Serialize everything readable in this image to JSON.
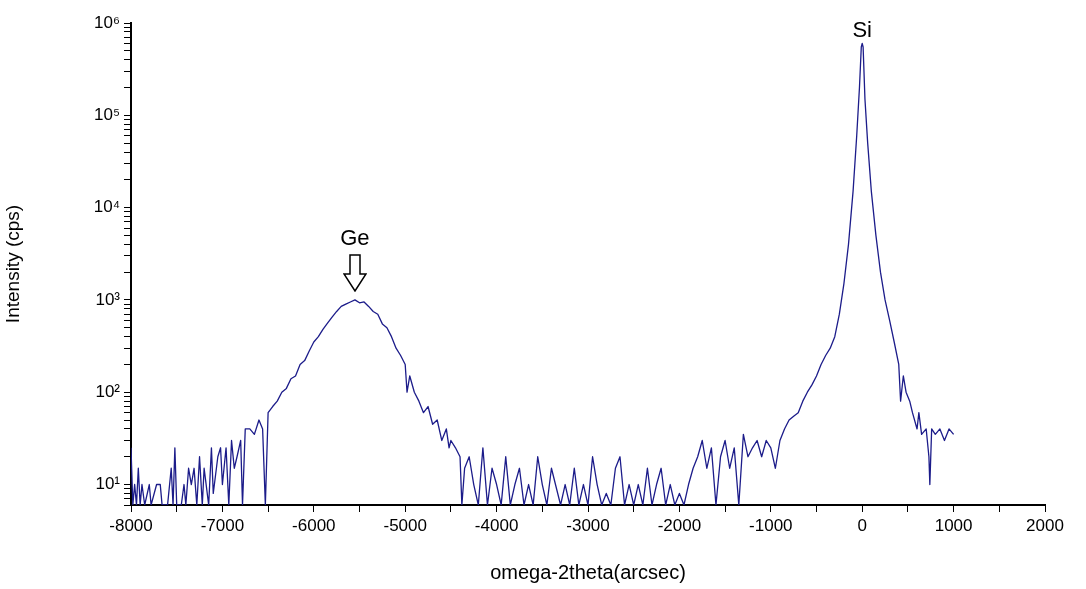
{
  "chart_data": {
    "type": "line",
    "xlabel": "omega-2theta(arcsec)",
    "ylabel": "Intensity (cps)",
    "log": "y",
    "grid": false,
    "legend": false,
    "marker": "none",
    "line_style": "solid",
    "xlim": [
      -8000,
      2000
    ],
    "xticks": [
      -8000,
      {
        "value": -7500,
        "label": null
      },
      -7000,
      {
        "value": -6500,
        "label": null
      },
      -6000,
      {
        "value": -5500,
        "label": null
      },
      -5000,
      {
        "value": -4500,
        "label": null
      },
      -4000,
      {
        "value": -3500,
        "label": null
      },
      -3000,
      {
        "value": -2500,
        "label": null
      },
      -2000,
      {
        "value": -1500,
        "label": null
      },
      -1000,
      {
        "value": -500,
        "label": null
      },
      0,
      {
        "value": 500,
        "label": null
      },
      1000,
      {
        "value": 1500,
        "label": null
      },
      2000
    ],
    "ylim": [
      6,
      1000000
    ],
    "yticks": [
      {
        "value": 6,
        "label": null
      },
      {
        "value": 7,
        "label": null
      },
      {
        "value": 8,
        "label": null
      },
      {
        "value": 9,
        "label": null
      },
      {
        "value": 10,
        "label": "10¹"
      },
      {
        "value": 20,
        "label": null
      },
      {
        "value": 30,
        "label": null
      },
      {
        "value": 40,
        "label": null
      },
      {
        "value": 50,
        "label": null
      },
      {
        "value": 60,
        "label": null
      },
      {
        "value": 70,
        "label": null
      },
      {
        "value": 80,
        "label": null
      },
      {
        "value": 90,
        "label": null
      },
      {
        "value": 100,
        "label": "10²"
      },
      {
        "value": 200,
        "label": null
      },
      {
        "value": 300,
        "label": null
      },
      {
        "value": 400,
        "label": null
      },
      {
        "value": 500,
        "label": null
      },
      {
        "value": 600,
        "label": null
      },
      {
        "value": 700,
        "label": null
      },
      {
        "value": 800,
        "label": null
      },
      {
        "value": 900,
        "label": null
      },
      {
        "value": 1000,
        "label": "10³"
      },
      {
        "value": 2000,
        "label": null
      },
      {
        "value": 3000,
        "label": null
      },
      {
        "value": 4000,
        "label": null
      },
      {
        "value": 5000,
        "label": null
      },
      {
        "value": 6000,
        "label": null
      },
      {
        "value": 7000,
        "label": null
      },
      {
        "value": 8000,
        "label": null
      },
      {
        "value": 9000,
        "label": null
      },
      {
        "value": 10000,
        "label": "10⁴"
      },
      {
        "value": 20000,
        "label": null
      },
      {
        "value": 30000,
        "label": null
      },
      {
        "value": 40000,
        "label": null
      },
      {
        "value": 50000,
        "label": null
      },
      {
        "value": 60000,
        "label": null
      },
      {
        "value": 70000,
        "label": null
      },
      {
        "value": 80000,
        "label": null
      },
      {
        "value": 90000,
        "label": null
      },
      {
        "value": 100000,
        "label": "10⁵"
      },
      {
        "value": 200000,
        "label": null
      },
      {
        "value": 300000,
        "label": null
      },
      {
        "value": 400000,
        "label": null
      },
      {
        "value": 500000,
        "label": null
      },
      {
        "value": 600000,
        "label": null
      },
      {
        "value": 700000,
        "label": null
      },
      {
        "value": 800000,
        "label": null
      },
      {
        "value": 900000,
        "label": null
      },
      {
        "value": 1000000,
        "label": "10⁶"
      }
    ],
    "annotations": [
      {
        "text": "Ge",
        "x": -5550,
        "y": 1000
      },
      {
        "text": "Si",
        "x": 0,
        "y": 600000
      }
    ],
    "series": [
      {
        "color": "#1c1c8a",
        "x": [
          -8000,
          -7980,
          -7960,
          -7940,
          -7920,
          -7900,
          -7880,
          -7850,
          -7800,
          -7780,
          -7720,
          -7680,
          -7660,
          -7600,
          -7560,
          -7540,
          -7520,
          -7500,
          -7450,
          -7420,
          -7400,
          -7370,
          -7340,
          -7310,
          -7280,
          -7250,
          -7220,
          -7200,
          -7150,
          -7120,
          -7100,
          -7050,
          -7020,
          -7000,
          -6960,
          -6930,
          -6900,
          -6870,
          -6840,
          -6800,
          -6780,
          -6750,
          -6700,
          -6650,
          -6600,
          -6560,
          -6530,
          -6500,
          -6450,
          -6400,
          -6350,
          -6300,
          -6250,
          -6200,
          -6150,
          -6100,
          -6050,
          -6000,
          -5950,
          -5900,
          -5850,
          -5800,
          -5750,
          -5700,
          -5650,
          -5600,
          -5550,
          -5500,
          -5450,
          -5400,
          -5350,
          -5300,
          -5250,
          -5200,
          -5150,
          -5100,
          -5050,
          -5000,
          -4980,
          -4950,
          -4900,
          -4850,
          -4800,
          -4750,
          -4700,
          -4650,
          -4600,
          -4550,
          -4520,
          -4500,
          -4450,
          -4400,
          -4380,
          -4350,
          -4300,
          -4250,
          -4200,
          -4150,
          -4100,
          -4050,
          -4000,
          -3950,
          -3900,
          -3850,
          -3800,
          -3750,
          -3700,
          -3650,
          -3600,
          -3550,
          -3500,
          -3450,
          -3400,
          -3300,
          -3250,
          -3200,
          -3150,
          -3100,
          -3050,
          -3000,
          -2950,
          -2900,
          -2850,
          -2800,
          -2750,
          -2700,
          -2650,
          -2600,
          -2550,
          -2500,
          -2450,
          -2400,
          -2350,
          -2300,
          -2250,
          -2200,
          -2150,
          -2100,
          -2050,
          -2000,
          -1950,
          -1900,
          -1850,
          -1800,
          -1750,
          -1700,
          -1650,
          -1600,
          -1550,
          -1500,
          -1450,
          -1400,
          -1350,
          -1300,
          -1250,
          -1200,
          -1150,
          -1100,
          -1050,
          -1000,
          -950,
          -900,
          -850,
          -800,
          -750,
          -700,
          -650,
          -600,
          -550,
          -500,
          -450,
          -400,
          -350,
          -300,
          -250,
          -200,
          -150,
          -100,
          -60,
          -30,
          -10,
          0,
          10,
          30,
          60,
          100,
          150,
          200,
          250,
          300,
          350,
          400,
          420,
          450,
          480,
          520,
          550,
          600,
          620,
          650,
          700,
          730,
          740,
          760,
          800,
          850,
          900,
          950,
          1000
        ],
        "values": [
          25,
          6,
          10,
          6,
          15,
          6,
          10,
          6,
          10,
          6,
          10,
          10,
          6,
          6,
          15,
          6,
          25,
          6,
          6,
          10,
          6,
          15,
          10,
          15,
          6,
          20,
          6,
          15,
          6,
          25,
          8,
          20,
          25,
          10,
          25,
          6,
          30,
          15,
          20,
          30,
          6,
          40,
          40,
          35,
          50,
          40,
          6,
          60,
          70,
          80,
          100,
          110,
          140,
          150,
          200,
          220,
          280,
          350,
          400,
          480,
          560,
          650,
          750,
          850,
          900,
          950,
          1000,
          930,
          950,
          850,
          750,
          700,
          550,
          500,
          400,
          300,
          250,
          200,
          100,
          150,
          100,
          80,
          60,
          70,
          45,
          50,
          30,
          40,
          25,
          30,
          25,
          20,
          6,
          15,
          20,
          10,
          6,
          25,
          6,
          15,
          10,
          6,
          20,
          6,
          10,
          15,
          6,
          10,
          6,
          20,
          10,
          6,
          15,
          6,
          10,
          6,
          15,
          6,
          10,
          6,
          20,
          10,
          6,
          8,
          6,
          15,
          20,
          6,
          10,
          6,
          10,
          6,
          15,
          6,
          10,
          15,
          6,
          10,
          6,
          8,
          6,
          10,
          15,
          20,
          30,
          15,
          25,
          6,
          20,
          30,
          15,
          25,
          6,
          35,
          20,
          25,
          30,
          20,
          30,
          25,
          15,
          30,
          40,
          50,
          55,
          60,
          80,
          100,
          120,
          150,
          200,
          250,
          300,
          400,
          700,
          1500,
          4000,
          15000,
          60000,
          200000,
          550000,
          600000,
          550000,
          150000,
          50000,
          15000,
          5000,
          2000,
          1000,
          600,
          350,
          200,
          80,
          150,
          100,
          80,
          60,
          40,
          60,
          35,
          40,
          20,
          10,
          40,
          35,
          40,
          30,
          40,
          35
        ]
      }
    ]
  }
}
